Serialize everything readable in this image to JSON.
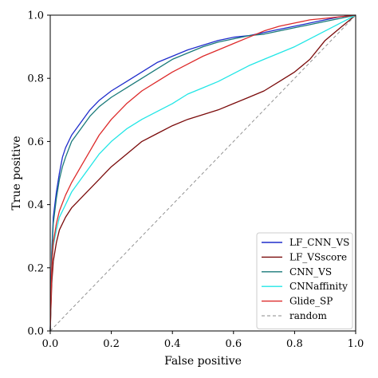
{
  "chart_data": {
    "type": "line",
    "title": "",
    "xlabel": "False positive",
    "ylabel": "True positive",
    "xlim": [
      0.0,
      1.0
    ],
    "ylim": [
      0.0,
      1.0
    ],
    "xticks": [
      "0.0",
      "0.2",
      "0.4",
      "0.6",
      "0.8",
      "1.0"
    ],
    "yticks": [
      "0.0",
      "0.2",
      "0.4",
      "0.6",
      "0.8",
      "1.0"
    ],
    "grid": false,
    "legend_position": "lower-right",
    "series": [
      {
        "name": "LF_CNN_VS",
        "color": "#1f2dcc",
        "style": "solid",
        "points": [
          [
            0,
            0
          ],
          [
            0.005,
            0.25
          ],
          [
            0.01,
            0.36
          ],
          [
            0.02,
            0.44
          ],
          [
            0.03,
            0.5
          ],
          [
            0.04,
            0.55
          ],
          [
            0.05,
            0.58
          ],
          [
            0.07,
            0.62
          ],
          [
            0.1,
            0.66
          ],
          [
            0.13,
            0.7
          ],
          [
            0.16,
            0.73
          ],
          [
            0.2,
            0.76
          ],
          [
            0.25,
            0.79
          ],
          [
            0.3,
            0.82
          ],
          [
            0.35,
            0.85
          ],
          [
            0.4,
            0.87
          ],
          [
            0.45,
            0.89
          ],
          [
            0.5,
            0.905
          ],
          [
            0.55,
            0.92
          ],
          [
            0.6,
            0.93
          ],
          [
            0.65,
            0.935
          ],
          [
            0.7,
            0.945
          ],
          [
            0.75,
            0.955
          ],
          [
            0.8,
            0.965
          ],
          [
            0.85,
            0.975
          ],
          [
            0.9,
            0.985
          ],
          [
            0.95,
            0.995
          ],
          [
            1,
            1
          ]
        ]
      },
      {
        "name": "LF_VSscore",
        "color": "#7a0a0a",
        "style": "solid",
        "points": [
          [
            0,
            0
          ],
          [
            0.005,
            0.15
          ],
          [
            0.01,
            0.22
          ],
          [
            0.02,
            0.28
          ],
          [
            0.03,
            0.32
          ],
          [
            0.05,
            0.36
          ],
          [
            0.07,
            0.39
          ],
          [
            0.1,
            0.42
          ],
          [
            0.13,
            0.45
          ],
          [
            0.16,
            0.48
          ],
          [
            0.2,
            0.52
          ],
          [
            0.25,
            0.56
          ],
          [
            0.3,
            0.6
          ],
          [
            0.35,
            0.625
          ],
          [
            0.4,
            0.65
          ],
          [
            0.45,
            0.67
          ],
          [
            0.5,
            0.685
          ],
          [
            0.55,
            0.7
          ],
          [
            0.6,
            0.72
          ],
          [
            0.65,
            0.74
          ],
          [
            0.7,
            0.76
          ],
          [
            0.75,
            0.79
          ],
          [
            0.8,
            0.82
          ],
          [
            0.85,
            0.86
          ],
          [
            0.9,
            0.92
          ],
          [
            0.95,
            0.96
          ],
          [
            1,
            1
          ]
        ]
      },
      {
        "name": "CNN_VS",
        "color": "#1a7a7a",
        "style": "solid",
        "points": [
          [
            0,
            0
          ],
          [
            0.005,
            0.24
          ],
          [
            0.01,
            0.34
          ],
          [
            0.02,
            0.42
          ],
          [
            0.03,
            0.48
          ],
          [
            0.04,
            0.52
          ],
          [
            0.05,
            0.55
          ],
          [
            0.07,
            0.6
          ],
          [
            0.1,
            0.64
          ],
          [
            0.13,
            0.68
          ],
          [
            0.16,
            0.71
          ],
          [
            0.2,
            0.74
          ],
          [
            0.25,
            0.77
          ],
          [
            0.3,
            0.8
          ],
          [
            0.35,
            0.83
          ],
          [
            0.4,
            0.86
          ],
          [
            0.45,
            0.88
          ],
          [
            0.5,
            0.9
          ],
          [
            0.55,
            0.915
          ],
          [
            0.6,
            0.925
          ],
          [
            0.65,
            0.935
          ],
          [
            0.7,
            0.94
          ],
          [
            0.75,
            0.95
          ],
          [
            0.8,
            0.96
          ],
          [
            0.85,
            0.97
          ],
          [
            0.9,
            0.98
          ],
          [
            0.95,
            0.99
          ],
          [
            1,
            1
          ]
        ]
      },
      {
        "name": "CNNaffinity",
        "color": "#22e6e6",
        "style": "solid",
        "points": [
          [
            0,
            0
          ],
          [
            0.005,
            0.2
          ],
          [
            0.01,
            0.27
          ],
          [
            0.02,
            0.32
          ],
          [
            0.03,
            0.36
          ],
          [
            0.05,
            0.4
          ],
          [
            0.07,
            0.44
          ],
          [
            0.1,
            0.48
          ],
          [
            0.13,
            0.52
          ],
          [
            0.16,
            0.56
          ],
          [
            0.2,
            0.6
          ],
          [
            0.25,
            0.64
          ],
          [
            0.3,
            0.67
          ],
          [
            0.35,
            0.695
          ],
          [
            0.4,
            0.72
          ],
          [
            0.45,
            0.75
          ],
          [
            0.5,
            0.77
          ],
          [
            0.55,
            0.79
          ],
          [
            0.6,
            0.815
          ],
          [
            0.65,
            0.84
          ],
          [
            0.7,
            0.86
          ],
          [
            0.75,
            0.88
          ],
          [
            0.8,
            0.9
          ],
          [
            0.85,
            0.925
          ],
          [
            0.9,
            0.95
          ],
          [
            0.95,
            0.975
          ],
          [
            1,
            1
          ]
        ]
      },
      {
        "name": "Glide_SP",
        "color": "#dd2a2a",
        "style": "solid",
        "points": [
          [
            0,
            0
          ],
          [
            0.005,
            0.2
          ],
          [
            0.01,
            0.28
          ],
          [
            0.02,
            0.34
          ],
          [
            0.03,
            0.38
          ],
          [
            0.05,
            0.43
          ],
          [
            0.07,
            0.47
          ],
          [
            0.1,
            0.52
          ],
          [
            0.13,
            0.57
          ],
          [
            0.16,
            0.62
          ],
          [
            0.2,
            0.67
          ],
          [
            0.25,
            0.72
          ],
          [
            0.3,
            0.76
          ],
          [
            0.35,
            0.79
          ],
          [
            0.4,
            0.82
          ],
          [
            0.45,
            0.845
          ],
          [
            0.5,
            0.87
          ],
          [
            0.55,
            0.89
          ],
          [
            0.6,
            0.91
          ],
          [
            0.65,
            0.93
          ],
          [
            0.7,
            0.95
          ],
          [
            0.75,
            0.965
          ],
          [
            0.8,
            0.975
          ],
          [
            0.85,
            0.985
          ],
          [
            0.9,
            0.99
          ],
          [
            0.95,
            0.995
          ],
          [
            1,
            1
          ]
        ]
      },
      {
        "name": "random",
        "color": "#888888",
        "style": "dashed",
        "points": [
          [
            0,
            0
          ],
          [
            1,
            1
          ]
        ]
      }
    ]
  }
}
